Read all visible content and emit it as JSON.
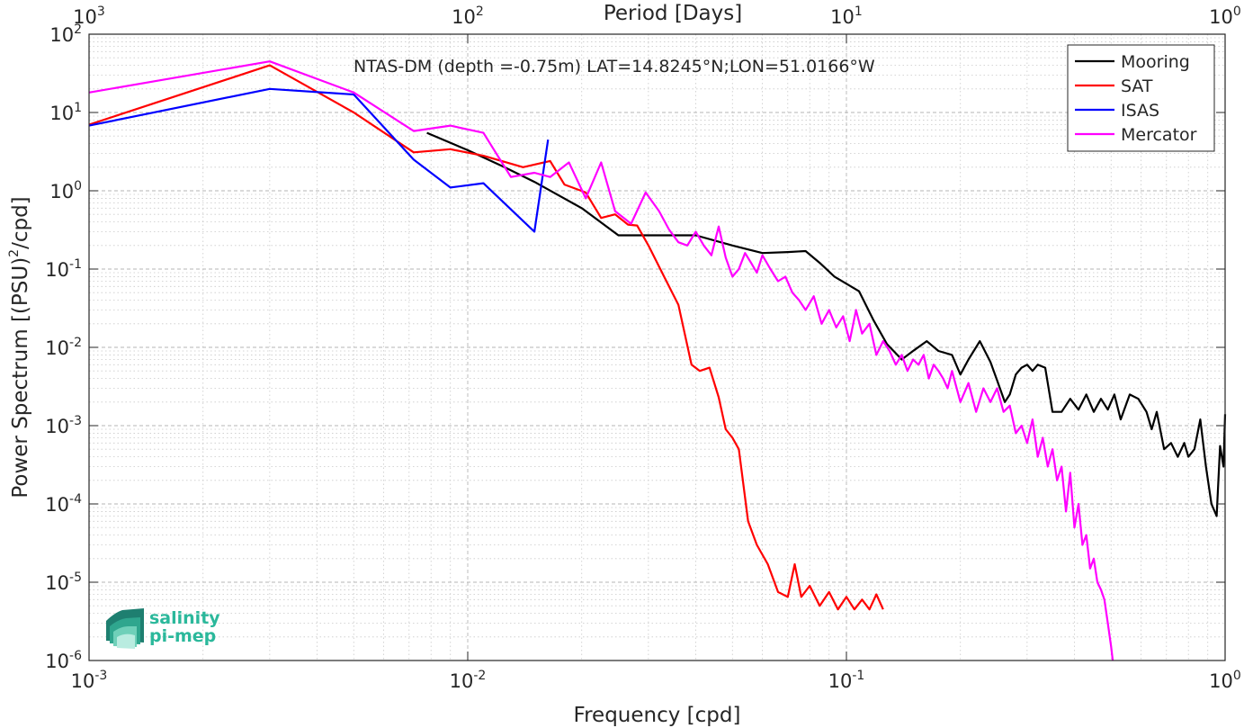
{
  "chart_data": {
    "type": "line",
    "title": "NTAS-DM (depth =-0.75m) LAT=14.8245°N;LON=51.0166°W",
    "xlabel": "Frequency [cpd]",
    "ylabel_pre": "Power Spectrum [(PSU)",
    "ylabel_sup": "2",
    "ylabel_post": "/cpd]",
    "top_xlabel": "Period [Days]",
    "xscale": "log",
    "yscale": "log",
    "xlim": [
      0.001,
      1
    ],
    "ylim": [
      1e-06,
      100
    ],
    "grid": true,
    "legend_position": "top-right",
    "x_ticks": [
      {
        "value": 0.001,
        "base": "10",
        "exp": "-3"
      },
      {
        "value": 0.01,
        "base": "10",
        "exp": "-2"
      },
      {
        "value": 0.1,
        "base": "10",
        "exp": "-1"
      },
      {
        "value": 1,
        "base": "10",
        "exp": "0"
      }
    ],
    "y_ticks": [
      {
        "value": 1e-06,
        "base": "10",
        "exp": "-6"
      },
      {
        "value": 1e-05,
        "base": "10",
        "exp": "-5"
      },
      {
        "value": 0.0001,
        "base": "10",
        "exp": "-4"
      },
      {
        "value": 0.001,
        "base": "10",
        "exp": "-3"
      },
      {
        "value": 0.01,
        "base": "10",
        "exp": "-2"
      },
      {
        "value": 0.1,
        "base": "10",
        "exp": "-1"
      },
      {
        "value": 1,
        "base": "10",
        "exp": "0"
      },
      {
        "value": 10,
        "base": "10",
        "exp": "1"
      },
      {
        "value": 100,
        "base": "10",
        "exp": "2"
      }
    ],
    "top_ticks": [
      {
        "value": 0.001,
        "base": "10",
        "exp": "3"
      },
      {
        "value": 0.01,
        "base": "10",
        "exp": "2"
      },
      {
        "value": 0.1,
        "base": "10",
        "exp": "1"
      },
      {
        "value": 1,
        "base": "10",
        "exp": "0"
      }
    ],
    "series": [
      {
        "name": "Mooring",
        "color": "#000000",
        "x": [
          0.0078,
          0.01,
          0.0125,
          0.015,
          0.02,
          0.025,
          0.033,
          0.04,
          0.05,
          0.06,
          0.07,
          0.078,
          0.085,
          0.093,
          0.1,
          0.108,
          0.118,
          0.128,
          0.14,
          0.15,
          0.163,
          0.175,
          0.19,
          0.2,
          0.21,
          0.225,
          0.24,
          0.25,
          0.262,
          0.27,
          0.28,
          0.29,
          0.3,
          0.31,
          0.32,
          0.335,
          0.35,
          0.37,
          0.39,
          0.41,
          0.43,
          0.45,
          0.47,
          0.49,
          0.51,
          0.53,
          0.56,
          0.59,
          0.62,
          0.64,
          0.66,
          0.69,
          0.72,
          0.75,
          0.78,
          0.8,
          0.83,
          0.86,
          0.89,
          0.92,
          0.95,
          0.97,
          0.99,
          1.0
        ],
        "y": [
          5.5,
          3.3,
          2.0,
          1.3,
          0.6,
          0.27,
          0.27,
          0.27,
          0.2,
          0.16,
          0.165,
          0.17,
          0.12,
          0.08,
          0.065,
          0.052,
          0.022,
          0.011,
          0.007,
          0.009,
          0.012,
          0.009,
          0.008,
          0.0045,
          0.007,
          0.012,
          0.0065,
          0.0038,
          0.002,
          0.0025,
          0.0045,
          0.0055,
          0.006,
          0.005,
          0.006,
          0.0055,
          0.0015,
          0.0015,
          0.0022,
          0.0016,
          0.0025,
          0.0015,
          0.0022,
          0.0016,
          0.0025,
          0.0012,
          0.0025,
          0.0022,
          0.0015,
          0.0009,
          0.0015,
          0.0005,
          0.0006,
          0.0004,
          0.0006,
          0.0004,
          0.0005,
          0.0012,
          0.0003,
          0.0001,
          7e-05,
          0.00055,
          0.0003,
          0.0014
        ]
      },
      {
        "name": "SAT",
        "color": "#ff0000",
        "x": [
          0.001,
          0.003,
          0.005,
          0.0072,
          0.009,
          0.011,
          0.014,
          0.0165,
          0.018,
          0.0205,
          0.0225,
          0.0245,
          0.0265,
          0.028,
          0.03,
          0.033,
          0.036,
          0.039,
          0.041,
          0.0435,
          0.046,
          0.048,
          0.05,
          0.052,
          0.055,
          0.058,
          0.062,
          0.066,
          0.07,
          0.073,
          0.076,
          0.08,
          0.085,
          0.09,
          0.095,
          0.1,
          0.105,
          0.11,
          0.115,
          0.12,
          0.125
        ],
        "y": [
          7,
          40,
          10,
          3.1,
          3.4,
          2.8,
          2.0,
          2.4,
          1.2,
          0.95,
          0.45,
          0.5,
          0.37,
          0.36,
          0.2,
          0.08,
          0.035,
          0.006,
          0.005,
          0.0055,
          0.0023,
          0.0009,
          0.0007,
          0.0005,
          6e-05,
          3e-05,
          1.7e-05,
          7.5e-06,
          6.5e-06,
          1.7e-05,
          6.5e-06,
          9e-06,
          5e-06,
          7.5e-06,
          4.5e-06,
          6.5e-06,
          4.5e-06,
          6e-06,
          4.5e-06,
          7e-06,
          4.5e-06
        ]
      },
      {
        "name": "ISAS",
        "color": "#0000ff",
        "x": [
          0.001,
          0.003,
          0.005,
          0.0072,
          0.009,
          0.011,
          0.015,
          0.0163
        ],
        "y": [
          6.8,
          20,
          17,
          2.5,
          1.1,
          1.25,
          0.3,
          4.5
        ]
      },
      {
        "name": "Mercator",
        "color": "#ff00ff",
        "x": [
          0.001,
          0.003,
          0.005,
          0.0072,
          0.009,
          0.011,
          0.013,
          0.015,
          0.0165,
          0.0185,
          0.0205,
          0.0225,
          0.0245,
          0.027,
          0.0295,
          0.032,
          0.034,
          0.036,
          0.038,
          0.04,
          0.042,
          0.044,
          0.046,
          0.048,
          0.05,
          0.052,
          0.054,
          0.056,
          0.058,
          0.06,
          0.063,
          0.066,
          0.069,
          0.072,
          0.075,
          0.078,
          0.082,
          0.086,
          0.09,
          0.094,
          0.098,
          0.102,
          0.106,
          0.11,
          0.115,
          0.12,
          0.125,
          0.13,
          0.135,
          0.14,
          0.145,
          0.15,
          0.155,
          0.16,
          0.165,
          0.17,
          0.175,
          0.18,
          0.185,
          0.19,
          0.2,
          0.21,
          0.22,
          0.23,
          0.24,
          0.25,
          0.26,
          0.27,
          0.28,
          0.29,
          0.3,
          0.31,
          0.32,
          0.33,
          0.34,
          0.35,
          0.36,
          0.37,
          0.38,
          0.39,
          0.4,
          0.41,
          0.42,
          0.43,
          0.44,
          0.45,
          0.46,
          0.47,
          0.48,
          0.49,
          0.5,
          0.505
        ],
        "y": [
          18,
          45,
          18,
          5.8,
          6.8,
          5.5,
          1.5,
          1.7,
          1.5,
          2.3,
          0.8,
          2.3,
          0.55,
          0.38,
          0.95,
          0.55,
          0.32,
          0.22,
          0.2,
          0.3,
          0.2,
          0.15,
          0.35,
          0.14,
          0.08,
          0.1,
          0.16,
          0.12,
          0.09,
          0.15,
          0.1,
          0.07,
          0.08,
          0.05,
          0.04,
          0.03,
          0.045,
          0.02,
          0.03,
          0.018,
          0.025,
          0.012,
          0.03,
          0.015,
          0.02,
          0.008,
          0.012,
          0.009,
          0.006,
          0.008,
          0.005,
          0.007,
          0.006,
          0.008,
          0.004,
          0.006,
          0.005,
          0.004,
          0.003,
          0.005,
          0.002,
          0.0035,
          0.0015,
          0.003,
          0.002,
          0.003,
          0.0015,
          0.0018,
          0.0008,
          0.001,
          0.0006,
          0.0012,
          0.0004,
          0.0007,
          0.0003,
          0.0005,
          0.0002,
          0.0003,
          8e-05,
          0.00025,
          5e-05,
          0.0001,
          3e-05,
          4e-05,
          1.5e-05,
          2e-05,
          1e-05,
          8e-06,
          6e-06,
          3e-06,
          1.5e-06,
          1e-06
        ]
      }
    ]
  },
  "logo": {
    "line1": "salinity",
    "line2": "pi-mep",
    "color": "#2bb89b"
  }
}
